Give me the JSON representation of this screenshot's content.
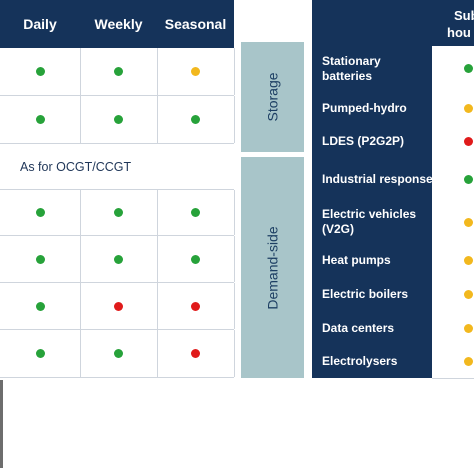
{
  "left_table": {
    "headers": [
      "Daily",
      "Weekly",
      "Seasonal"
    ],
    "text_row": "As for OCGT/CCGT",
    "rows": [
      [
        "green",
        "green",
        "yellow"
      ],
      [
        "green",
        "green",
        "green"
      ],
      [
        "green",
        "green",
        "green"
      ],
      [
        "green",
        "green",
        "green"
      ],
      [
        "green",
        "red",
        "red"
      ],
      [
        "green",
        "green",
        "red"
      ]
    ]
  },
  "categories": {
    "storage": "Storage",
    "demand_side": "Demand-side"
  },
  "right_table": {
    "header_line1": "Sub",
    "header_line2": "hou",
    "rows": [
      {
        "label": "Stationary batteries",
        "status": "green"
      },
      {
        "label": "Pumped-hydro",
        "status": "yellow"
      },
      {
        "label": "LDES (P2G2P)",
        "status": "red"
      },
      {
        "label": "Industrial response",
        "status": "green"
      },
      {
        "label": "Electric vehicles (V2G)",
        "status": "yellow"
      },
      {
        "label": "Heat pumps",
        "status": "yellow"
      },
      {
        "label": "Electric boilers",
        "status": "yellow"
      },
      {
        "label": "Data centers",
        "status": "yellow"
      },
      {
        "label": "Electrolysers",
        "status": "yellow"
      }
    ]
  },
  "colors": {
    "green": "#27a23a",
    "yellow": "#f2b81e",
    "red": "#e01b1b",
    "navy": "#15335a",
    "teal": "#a8c5c9"
  }
}
